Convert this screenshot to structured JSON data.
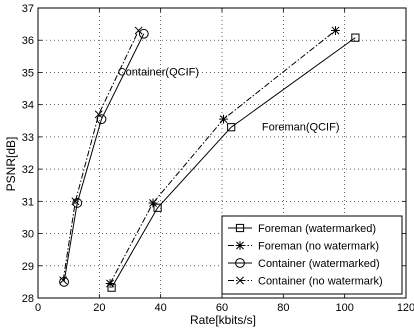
{
  "chart_data": {
    "type": "line",
    "title": "",
    "xlabel": "Rate[kbits/s]",
    "ylabel": "PSNR[dB]",
    "xlim": [
      0,
      120
    ],
    "ylim": [
      28,
      37
    ],
    "xticks": [
      0,
      20,
      40,
      60,
      80,
      100,
      120
    ],
    "yticks": [
      28,
      29,
      30,
      31,
      32,
      33,
      34,
      35,
      36,
      37
    ],
    "grid": true,
    "legend_position": "bottom-right",
    "series": [
      {
        "name": "Foreman (watermarked)",
        "marker": "square",
        "line": "solid",
        "x": [
          24,
          39,
          63,
          103.5
        ],
        "y": [
          28.32,
          30.8,
          33.3,
          36.08
        ]
      },
      {
        "name": "Foreman (no watermark)",
        "marker": "star",
        "line": "dashdot",
        "x": [
          23.5,
          37.5,
          60.5,
          97
        ],
        "y": [
          28.45,
          30.95,
          33.55,
          36.3
        ]
      },
      {
        "name": "Container (watermarked)",
        "marker": "circle",
        "line": "solid",
        "x": [
          8.5,
          12.8,
          20.7,
          34.5
        ],
        "y": [
          28.5,
          30.95,
          33.55,
          36.2
        ]
      },
      {
        "name": "Container (no watermark)",
        "marker": "x",
        "line": "dashdot",
        "x": [
          8.2,
          12.2,
          19.8,
          32.8
        ],
        "y": [
          28.55,
          31.0,
          33.7,
          36.3
        ]
      }
    ],
    "annotations": [
      {
        "text": "Container(QCIF)",
        "x": 26,
        "y": 34.9
      },
      {
        "text": "Foreman(QCIF)",
        "x": 73,
        "y": 33.2
      }
    ]
  }
}
